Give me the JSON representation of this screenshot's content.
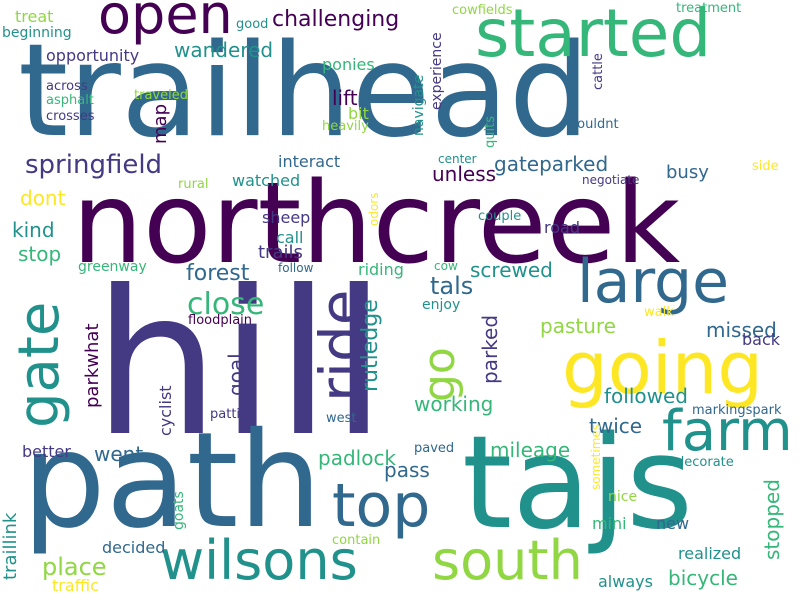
{
  "palette": {
    "deep_purple": "#440154",
    "indigo": "#443983",
    "blue": "#31688e",
    "teal": "#21918c",
    "green": "#35b779",
    "lime": "#90d743",
    "yellow": "#fde725"
  },
  "words": [
    "hill",
    "northcreek",
    "trailhead",
    "path",
    "tajs",
    "gate",
    "going",
    "large",
    "farm",
    "south",
    "wilsons",
    "top",
    "ride",
    "started",
    "open",
    "go",
    "close",
    "springfield",
    "challenging",
    "gateparked",
    "forest",
    "rutledge",
    "tals",
    "parked",
    "pasture",
    "working",
    "followed",
    "mileage",
    "padlock",
    "twice",
    "place",
    "stop",
    "kind",
    "dont",
    "treat",
    "beginning",
    "opportunity",
    "wandered",
    "map",
    "lift",
    "ponies",
    "bit",
    "navigate",
    "experience",
    "unless",
    "busy",
    "interact",
    "watched",
    "sheep",
    "trails",
    "call",
    "riding",
    "screwed",
    "missed",
    "back",
    "goal",
    "parkwhat",
    "cyclist",
    "went",
    "better",
    "traillink",
    "decided",
    "traffic",
    "goats",
    "pass",
    "stopped",
    "realized",
    "bicycle",
    "always",
    "new",
    "mini",
    "nice",
    "decorate",
    "markingspark",
    "west",
    "patties",
    "floodplain",
    "enjoy",
    "walk",
    "contain",
    "sometimes",
    "paved",
    "road",
    "couple",
    "odors",
    "cow",
    "follow",
    "rural",
    "greenway",
    "negotiate",
    "side",
    "center",
    "couldnt",
    "quits",
    "heavily",
    "traveled",
    "crosses",
    "asphalt",
    "across",
    "good",
    "cowfields",
    "cattle",
    "treatment"
  ]
}
